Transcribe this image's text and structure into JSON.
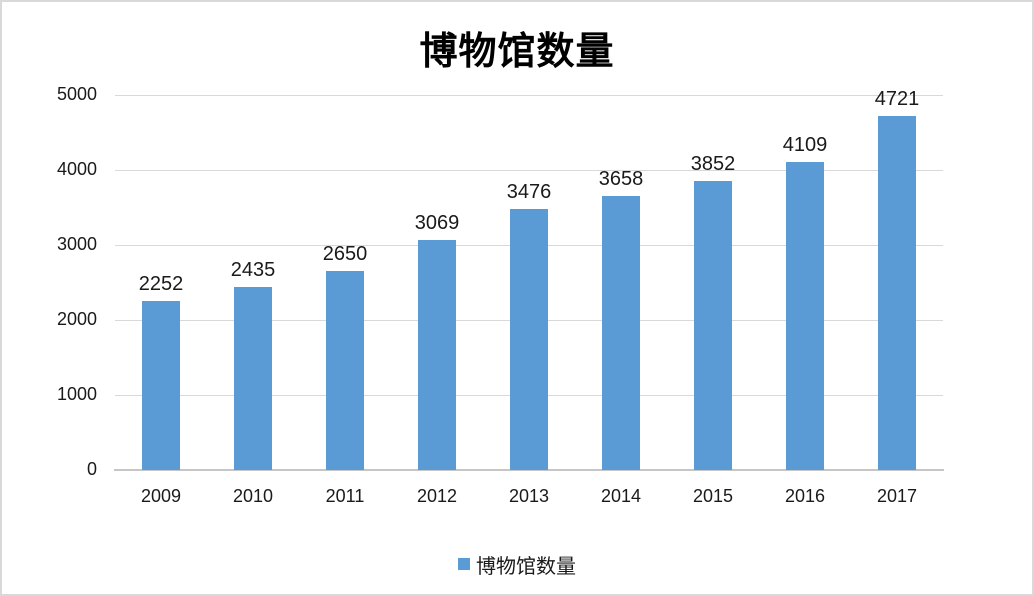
{
  "chart_data": {
    "type": "bar",
    "title": "博物馆数量",
    "categories": [
      "2009",
      "2010",
      "2011",
      "2012",
      "2013",
      "2014",
      "2015",
      "2016",
      "2017"
    ],
    "values": [
      2252,
      2435,
      2650,
      3069,
      3476,
      3658,
      3852,
      4109,
      4721
    ],
    "series_name": "博物馆数量",
    "xlabel": "",
    "ylabel": "",
    "ylim": [
      0,
      5000
    ],
    "yticks": [
      0,
      1000,
      2000,
      3000,
      4000,
      5000
    ],
    "grid": "horizontal",
    "data_labels": true,
    "legend_position": "bottom",
    "bar_color": "#5b9bd5"
  },
  "legend": {
    "label": "博物馆数量"
  },
  "colors": {
    "bar": "#5b9bd5",
    "gridline": "#d9d9d9",
    "axis_line": "#c6c6c6",
    "text": "#1a1a1a",
    "frame_border": "#d9d9d9"
  }
}
